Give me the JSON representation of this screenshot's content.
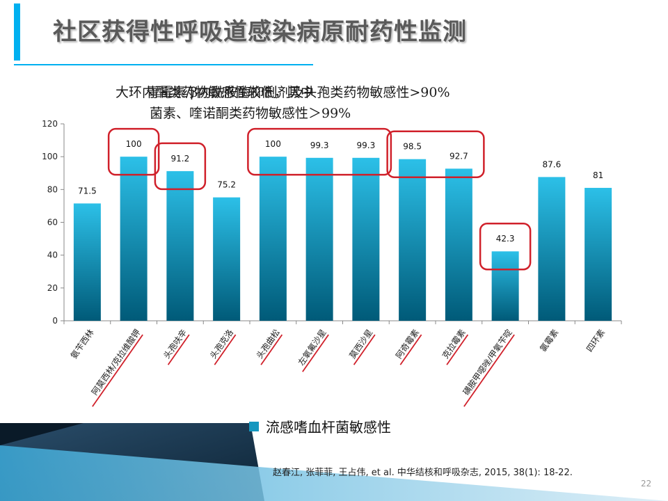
{
  "title": "社区获得性呼吸道感染病原耐药性监测",
  "caption_lines": [
    "大环内酯类药物敏感性较低，其中",
    "青霉素/β内酰胺酶抑制剂及头孢类药物敏感性>90%",
    "菌素、喹诺酮类药物敏感性＞99%"
  ],
  "legend_label": "流感嗜血杆菌敏感性",
  "citation": "赵春江, 张菲菲, 王占伟, et al. 中华结核和呼吸杂志, 2015, 38(1): 18-22.",
  "page_number": "22",
  "colors": {
    "accent": "#00b0f0",
    "bar_top": "#2cc0e8",
    "bar_bottom": "#005a78",
    "highlight": "#d0202a"
  },
  "chart_data": {
    "type": "bar",
    "categories": [
      "氨苄西林",
      "阿莫西林/克拉维酸钾",
      "头孢呋辛",
      "头孢克洛",
      "头孢曲松",
      "左氧氟沙星",
      "莫西沙星",
      "阿奇霉素",
      "克拉霉素",
      "磺胺甲噁唑/甲氧苄啶",
      "氯霉素",
      "四环素"
    ],
    "series": [
      {
        "name": "流感嗜血杆菌敏感性",
        "values": [
          71.5,
          100,
          91.2,
          75.2,
          100,
          99.3,
          99.3,
          98.5,
          92.7,
          42.3,
          87.6,
          81
        ]
      }
    ],
    "data_labels": [
      "71.5",
      "100",
      "91.2",
      "75.2",
      "100",
      "99.3",
      "99.3",
      "98.5",
      "92.7",
      "42.3",
      "87.6",
      "81"
    ],
    "ylim": [
      0,
      120
    ],
    "yticks": [
      0,
      20,
      40,
      60,
      80,
      100,
      120
    ],
    "underlined_categories": [
      1,
      2,
      3,
      4,
      5,
      6,
      7,
      8,
      9
    ],
    "highlight_groups": [
      [
        1
      ],
      [
        2
      ],
      [
        4,
        5,
        6
      ],
      [
        7,
        8
      ],
      [
        9
      ]
    ],
    "legend": "bottom",
    "grid": false
  }
}
